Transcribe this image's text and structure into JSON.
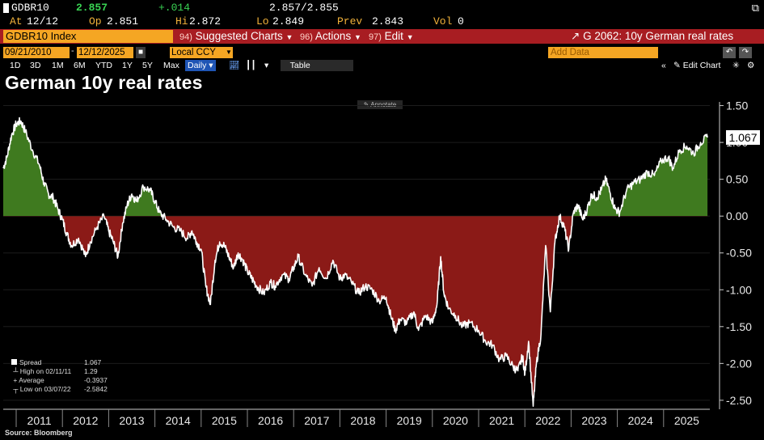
{
  "quote": {
    "ticker": "GDBR10",
    "last": "2.857",
    "change": "+.014",
    "bid_ask": "2.857/2.855",
    "at_label": "At",
    "at": "12/12",
    "open_label": "Op",
    "open": "2.851",
    "high_label": "Hi",
    "high": "2.872",
    "low_label": "Lo",
    "low": "2.849",
    "prev_label": "Prev",
    "prev": "2.843",
    "vol_label": "Vol",
    "vol": "0"
  },
  "toolbar": {
    "security": "GDBR10 Index",
    "suggested_num": "94)",
    "suggested": "Suggested Charts",
    "actions_num": "96)",
    "actions": "Actions",
    "edit_num": "97)",
    "edit": "Edit",
    "chart_title": "G 2062: 10y German real rates"
  },
  "range": {
    "start": "09/21/2010",
    "end": "12/12/2025",
    "currency": "Local CCY",
    "add_data_placeholder": "Add Data",
    "edit_chart": "Edit Chart"
  },
  "periods": [
    "1D",
    "3D",
    "1M",
    "6M",
    "YTD",
    "1Y",
    "5Y",
    "Max"
  ],
  "frequency": "Daily",
  "table_label": "Table",
  "title": "German 10y real rates",
  "annotate": "Annotate",
  "legend": {
    "spread_label": "Spread",
    "spread": "1.067",
    "high_label": "High on 02/11/11",
    "high": "1.29",
    "avg_label": "Average",
    "avg": "-0.3937",
    "low_label": "Low on 03/07/22",
    "low": "-2.5842"
  },
  "source": "Source:  Bloomberg",
  "colors": {
    "positive": "#3f7a1f",
    "negative": "#8b1a17",
    "line": "#ffffff",
    "accent": "#f5a623",
    "bar": "#a81d22"
  },
  "chart_data": {
    "type": "area",
    "title": "German 10y real rates",
    "ylabel": "",
    "ylim": [
      -2.6,
      1.55
    ],
    "yticks": [
      "1.50",
      "1.00",
      "0.50",
      "0.00",
      "-0.50",
      "-1.00",
      "-1.50",
      "-2.00",
      "-2.50"
    ],
    "ytick_values": [
      1.5,
      1.0,
      0.5,
      0.0,
      -0.5,
      -1.0,
      -1.5,
      -2.0,
      -2.5
    ],
    "xticks": [
      "2011",
      "2012",
      "2013",
      "2014",
      "2015",
      "2016",
      "2017",
      "2018",
      "2019",
      "2020",
      "2021",
      "2022",
      "2023",
      "2024",
      "2025"
    ],
    "last_value_label": "1.067",
    "series": [
      {
        "name": "Spread",
        "x": [
          2010.72,
          2010.8,
          2010.9,
          2011.0,
          2011.1,
          2011.2,
          2011.35,
          2011.5,
          2011.6,
          2011.7,
          2011.8,
          2011.9,
          2012.0,
          2012.1,
          2012.2,
          2012.35,
          2012.5,
          2012.6,
          2012.75,
          2012.9,
          2013.0,
          2013.1,
          2013.2,
          2013.3,
          2013.4,
          2013.5,
          2013.6,
          2013.75,
          2013.9,
          2014.0,
          2014.1,
          2014.25,
          2014.4,
          2014.55,
          2014.7,
          2014.8,
          2014.9,
          2015.0,
          2015.1,
          2015.2,
          2015.3,
          2015.4,
          2015.5,
          2015.6,
          2015.7,
          2015.8,
          2015.9,
          2016.0,
          2016.1,
          2016.2,
          2016.35,
          2016.5,
          2016.6,
          2016.75,
          2016.9,
          2017.0,
          2017.1,
          2017.25,
          2017.4,
          2017.55,
          2017.7,
          2017.85,
          2018.0,
          2018.1,
          2018.25,
          2018.4,
          2018.55,
          2018.7,
          2018.85,
          2019.0,
          2019.1,
          2019.2,
          2019.3,
          2019.45,
          2019.6,
          2019.7,
          2019.85,
          2020.0,
          2020.1,
          2020.18,
          2020.25,
          2020.35,
          2020.5,
          2020.65,
          2020.8,
          2021.0,
          2021.15,
          2021.3,
          2021.45,
          2021.6,
          2021.75,
          2021.85,
          2021.95,
          2022.0,
          2022.08,
          2022.18,
          2022.25,
          2022.35,
          2022.45,
          2022.55,
          2022.65,
          2022.75,
          2022.85,
          2022.95,
          2023.05,
          2023.15,
          2023.25,
          2023.35,
          2023.45,
          2023.55,
          2023.65,
          2023.75,
          2023.85,
          2023.95,
          2024.05,
          2024.2,
          2024.35,
          2024.5,
          2024.65,
          2024.8,
          2024.95,
          2025.1,
          2025.2,
          2025.35,
          2025.5,
          2025.65,
          2025.8,
          2025.95
        ],
        "values": [
          0.65,
          0.8,
          1.1,
          1.25,
          1.29,
          1.15,
          0.9,
          0.7,
          0.45,
          0.3,
          0.25,
          0.1,
          -0.05,
          -0.25,
          -0.4,
          -0.3,
          -0.55,
          -0.35,
          -0.15,
          0.0,
          -0.2,
          -0.35,
          -0.55,
          -0.1,
          0.15,
          0.3,
          0.2,
          0.4,
          0.35,
          0.2,
          0.05,
          -0.05,
          -0.15,
          -0.2,
          -0.3,
          -0.2,
          -0.35,
          -0.45,
          -0.95,
          -1.2,
          -0.6,
          -0.35,
          -0.4,
          -0.55,
          -0.7,
          -0.5,
          -0.6,
          -0.75,
          -0.85,
          -0.95,
          -1.05,
          -0.9,
          -0.95,
          -0.8,
          -0.85,
          -0.7,
          -0.55,
          -0.8,
          -0.95,
          -0.7,
          -0.85,
          -0.6,
          -0.85,
          -0.8,
          -0.9,
          -1.05,
          -0.95,
          -1.0,
          -1.15,
          -1.1,
          -1.35,
          -1.55,
          -1.4,
          -1.45,
          -1.3,
          -1.55,
          -1.35,
          -1.45,
          -1.2,
          -0.55,
          -1.05,
          -1.25,
          -1.35,
          -1.5,
          -1.45,
          -1.55,
          -1.7,
          -1.75,
          -1.95,
          -1.9,
          -2.05,
          -2.1,
          -1.9,
          -2.15,
          -1.7,
          -2.58,
          -2.0,
          -1.6,
          -0.4,
          -1.3,
          -0.35,
          0.0,
          -0.15,
          -0.45,
          0.05,
          0.15,
          -0.05,
          0.1,
          0.3,
          0.25,
          0.35,
          0.5,
          0.3,
          0.1,
          0.05,
          0.35,
          0.45,
          0.5,
          0.6,
          0.55,
          0.75,
          0.8,
          0.65,
          0.9,
          0.95,
          0.85,
          1.0,
          1.067
        ]
      }
    ]
  }
}
